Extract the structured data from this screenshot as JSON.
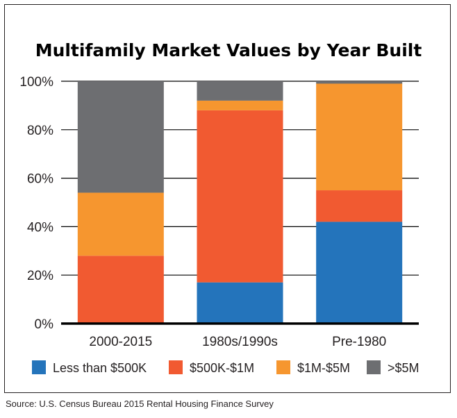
{
  "chart_data": {
    "type": "bar",
    "stacked": true,
    "title": "Multifamily Market Values by Year Built",
    "xlabel": "",
    "ylabel": "",
    "categories": [
      "2000-2015",
      "1980s/1990s",
      "Pre-1980"
    ],
    "series": [
      {
        "name": "Less than $500K",
        "color": "#2474bb",
        "values": [
          0,
          17,
          42
        ]
      },
      {
        "name": "$500K-$1M",
        "color": "#f15a31",
        "values": [
          28,
          71,
          13
        ]
      },
      {
        "name": "$1M-$5M",
        "color": "#f6962f",
        "values": [
          26,
          4,
          44
        ]
      },
      {
        "name": ">$5M",
        "color": "#6d6e71",
        "values": [
          46,
          8,
          1
        ]
      }
    ],
    "yticks": [
      "0%",
      "20%",
      "40%",
      "60%",
      "80%",
      "100%"
    ],
    "ylim": [
      0,
      100
    ],
    "grid": true,
    "legend_position": "bottom"
  },
  "source": "Source:  U.S. Census Bureau 2015 Rental Housing Finance Survey"
}
